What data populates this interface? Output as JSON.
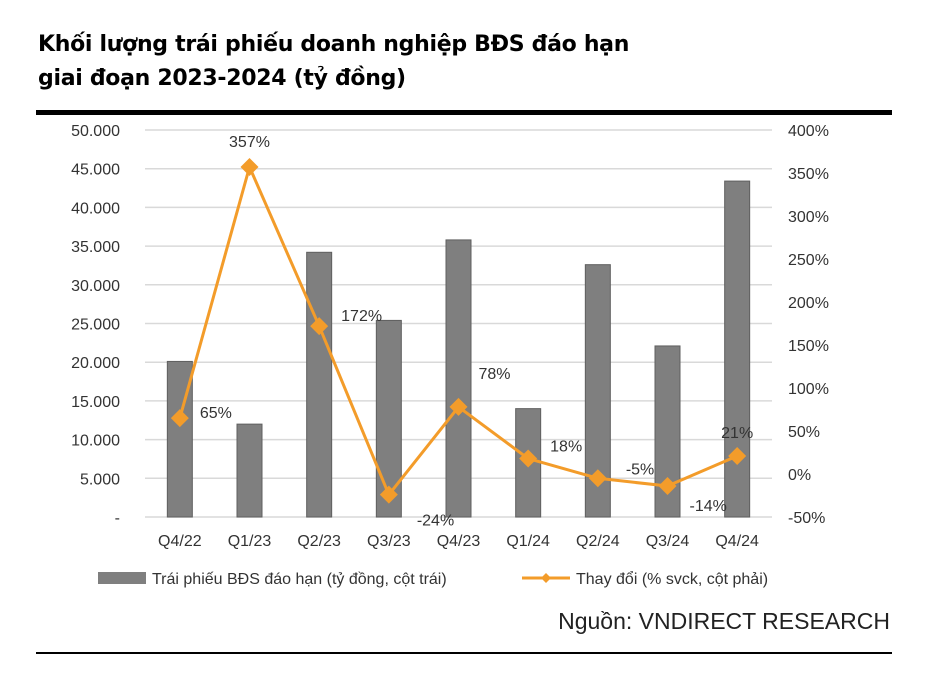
{
  "title_line1": "Khối lượng trái phiếu doanh nghiệp BĐS đáo hạn",
  "title_line2": "giai đoạn 2023-2024 (tỷ đồng)",
  "source": "Nguồn: VNDIRECT RESEARCH",
  "chart_data": {
    "type": "bar+line",
    "categories": [
      "Q4/22",
      "Q1/23",
      "Q2/23",
      "Q3/23",
      "Q4/23",
      "Q1/24",
      "Q2/24",
      "Q3/24",
      "Q4/24"
    ],
    "series": [
      {
        "name": "Trái phiếu BĐS đáo hạn (tỷ đồng, cột trái)",
        "type": "bar",
        "axis": "left",
        "color": "#7f7f7f",
        "values": [
          20100,
          12000,
          34200,
          25400,
          35800,
          14000,
          32600,
          22100,
          43400
        ]
      },
      {
        "name": "Thay đổi (% svck, cột phải)",
        "type": "line",
        "axis": "right",
        "color": "#f39c2a",
        "values": [
          65,
          357,
          172,
          -24,
          78,
          18,
          -5,
          -14,
          21
        ],
        "labels": [
          "65%",
          "357%",
          "172%",
          "-24%",
          "78%",
          "18%",
          "-5%",
          "-14%",
          "21%"
        ]
      }
    ],
    "left_axis": {
      "ylim": [
        0,
        50000
      ],
      "ticks": [
        "-",
        "5.000",
        "10.000",
        "15.000",
        "20.000",
        "25.000",
        "30.000",
        "35.000",
        "40.000",
        "45.000",
        "50.000"
      ]
    },
    "right_axis": {
      "ylim": [
        -50,
        400
      ],
      "ticks": [
        "-50%",
        "0%",
        "50%",
        "100%",
        "150%",
        "200%",
        "250%",
        "300%",
        "350%",
        "400%"
      ]
    },
    "grid": true,
    "legend_placement": "bottom"
  }
}
